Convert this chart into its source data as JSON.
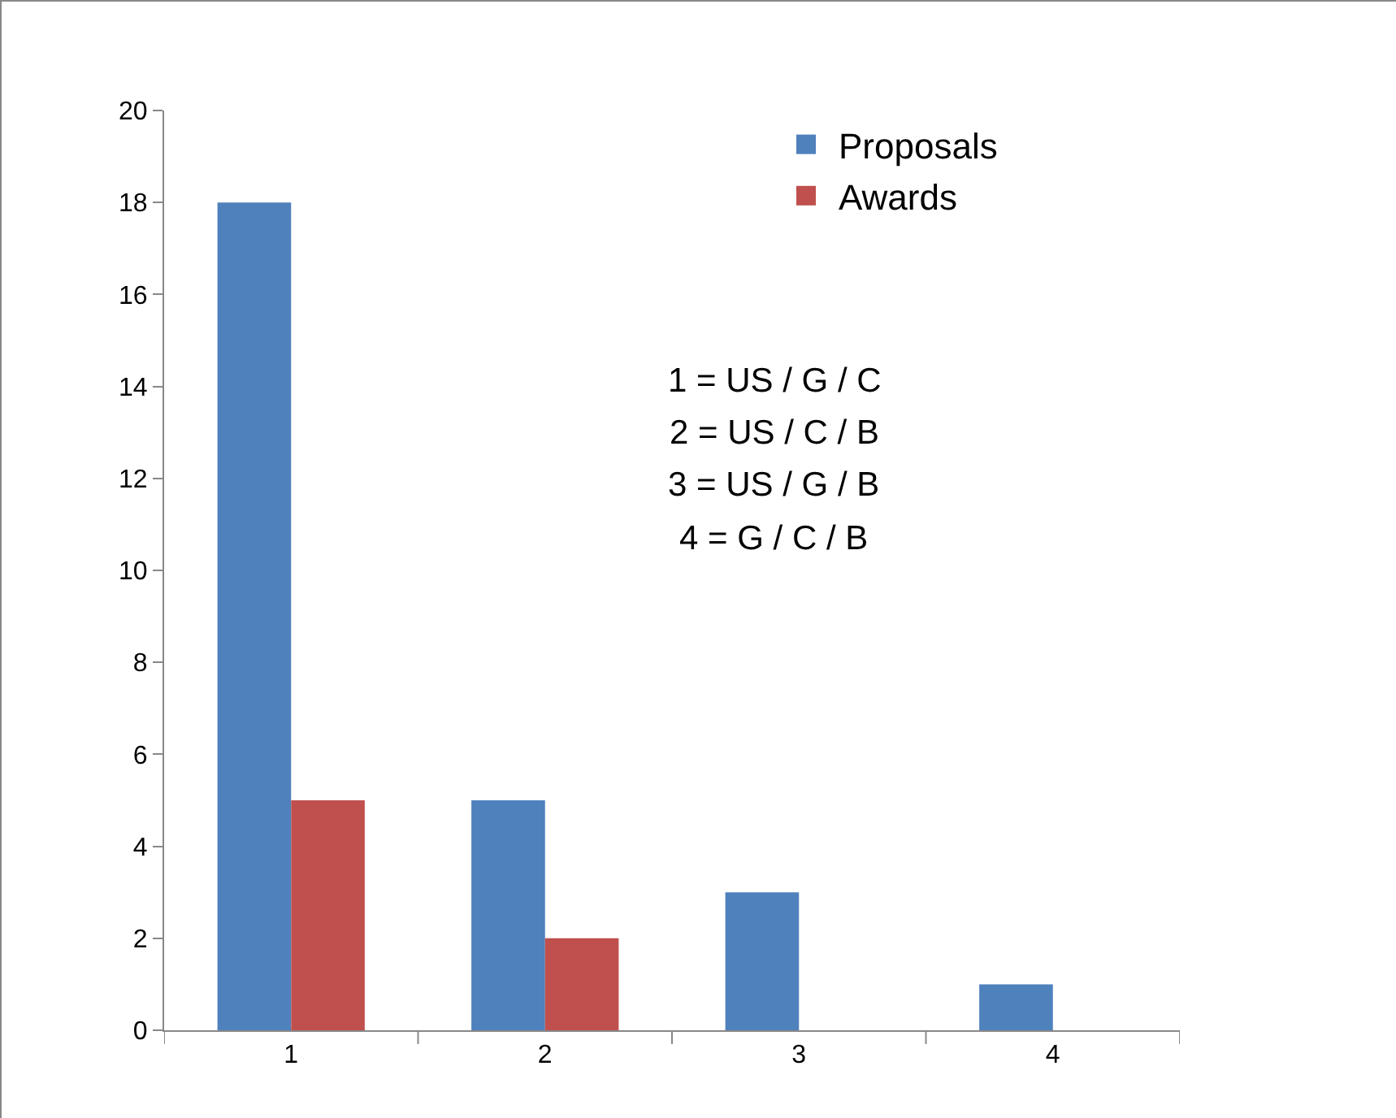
{
  "chart_data": {
    "type": "bar",
    "categories": [
      "1",
      "2",
      "3",
      "4"
    ],
    "series": [
      {
        "name": "Proposals",
        "color": "#4f81bd",
        "values": [
          18,
          5,
          3,
          1
        ]
      },
      {
        "name": "Awards",
        "color": "#c0504d",
        "values": [
          5,
          2,
          0,
          0
        ]
      }
    ],
    "ylim": [
      0,
      20
    ],
    "yticks": [
      0,
      2,
      4,
      6,
      8,
      10,
      12,
      14,
      16,
      18,
      20
    ],
    "grid": false,
    "legend": "top right",
    "annotations": [
      "1 = US / G / C",
      "2 = US / C / B",
      "3 = US / G / B",
      "4 = G / C / B"
    ]
  }
}
